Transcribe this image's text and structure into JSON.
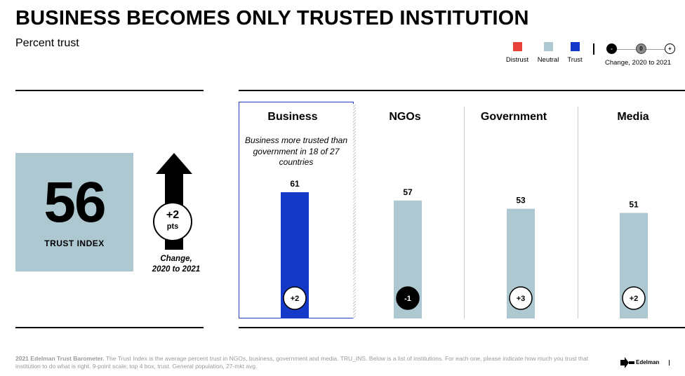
{
  "title": "BUSINESS BECOMES ONLY TRUSTED INSTITUTION",
  "subtitle": "Percent trust",
  "legend": {
    "distrust": "Distrust",
    "neutral": "Neutral",
    "trust": "Trust",
    "change_label": "Change, 2020 to 2021",
    "neg_symbol": "-",
    "zero_symbol": "0",
    "pos_symbol": "+",
    "colors": {
      "distrust": "#e8403a",
      "neutral": "#adc8d1",
      "trust": "#1438c7"
    }
  },
  "trust_index": {
    "value": "56",
    "label": "TRUST INDEX",
    "change_value": "+2",
    "change_unit": "pts",
    "change_caption_1": "Change,",
    "change_caption_2": "2020 to 2021"
  },
  "note": "Business more trusted than government in 18 of 27 countries",
  "chart_data": {
    "type": "bar",
    "categories": [
      "Business",
      "NGOs",
      "Government",
      "Media"
    ],
    "values": [
      61,
      57,
      53,
      51
    ],
    "changes": [
      "+2",
      "-1",
      "+3",
      "+2"
    ],
    "change_direction": [
      "up",
      "down",
      "up",
      "up"
    ],
    "bar_colors": [
      "#1438c7",
      "#adc8d1",
      "#adc8d1",
      "#adc8d1"
    ],
    "title": "",
    "xlabel": "",
    "ylabel": "",
    "ylim": [
      0,
      100
    ],
    "grid": false
  },
  "footer": {
    "source_bold": "2021 Edelman Trust Barometer.",
    "source_text": " The Trust Index is the average percent trust in NGOs, business, government and media. TRU_INS. Below is a list of institutions. For each one, please indicate how much you trust that institution to do what is right. 9-point scale; top 4 box, trust. General population, 27-mkt avg.",
    "brand": "Edelman"
  }
}
